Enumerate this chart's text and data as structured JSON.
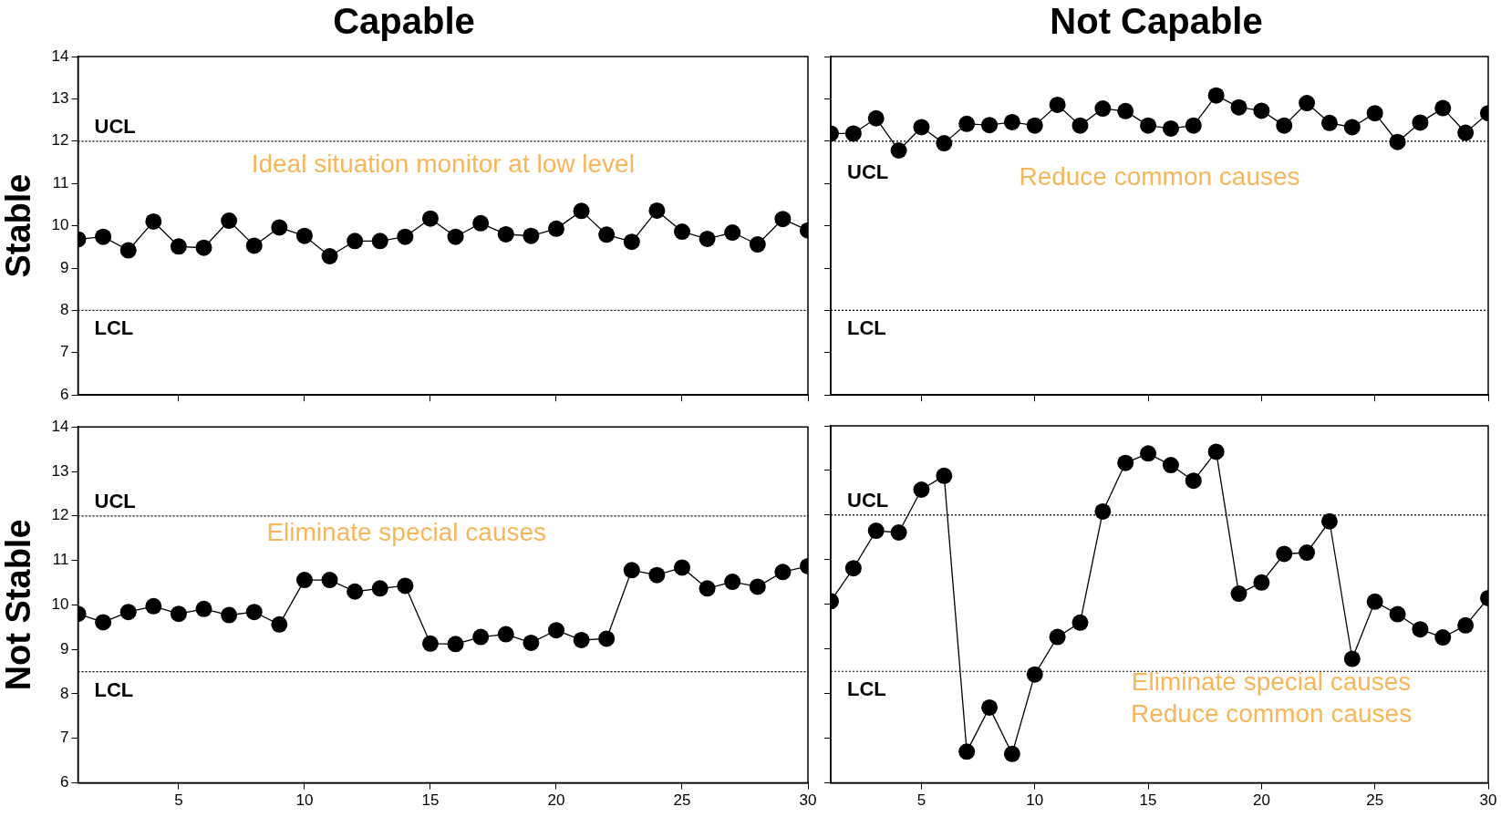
{
  "chart_data": [
    {
      "type": "line",
      "title": "Capable",
      "ylabel": "Stable",
      "x": [
        1,
        2,
        3,
        4,
        5,
        6,
        7,
        8,
        9,
        10,
        11,
        12,
        13,
        14,
        15,
        16,
        17,
        18,
        19,
        20,
        21,
        22,
        23,
        24,
        25,
        26,
        27,
        28,
        29,
        30
      ],
      "series": [
        {
          "color": "#000000",
          "values": [
            9.68,
            9.74,
            9.42,
            10.1,
            9.51,
            9.48,
            10.12,
            9.53,
            9.96,
            9.76,
            9.28,
            9.64,
            9.64,
            9.74,
            10.17,
            9.74,
            10.06,
            9.8,
            9.76,
            9.93,
            10.35,
            9.79,
            9.62,
            10.36,
            9.86,
            9.69,
            9.84,
            9.56,
            10.16,
            9.89
          ]
        }
      ],
      "xlim": [
        1,
        30
      ],
      "xticks": [
        {
          "value": 5,
          "label": null
        },
        {
          "value": 10,
          "label": null
        },
        {
          "value": 15,
          "label": null
        },
        {
          "value": 20,
          "label": null
        },
        {
          "value": 25,
          "label": null
        },
        {
          "value": 30,
          "label": null
        }
      ],
      "ylim": [
        6,
        14
      ],
      "yticks": [
        6,
        7,
        8,
        9,
        10,
        11,
        12,
        13,
        14
      ],
      "tick_labels": "y",
      "marker": "circle",
      "grid": false,
      "legend": false,
      "ref_lines": [
        {
          "axis": "y",
          "value": 12,
          "label": "UCL",
          "color": "#000000",
          "line_style": "dotted"
        },
        {
          "axis": "y",
          "value": 8,
          "label": "LCL",
          "color": "#000000",
          "line_style": "dotted"
        }
      ],
      "annotations": [
        "Ideal situation monitor at low level"
      ]
    },
    {
      "type": "line",
      "title": "Not Capable",
      "x": [
        1,
        2,
        3,
        4,
        5,
        6,
        7,
        8,
        9,
        10,
        11,
        12,
        13,
        14,
        15,
        16,
        17,
        18,
        19,
        20,
        21,
        22,
        23,
        24,
        25,
        26,
        27,
        28,
        29,
        30
      ],
      "series": [
        {
          "color": "#000000",
          "values": [
            12.18,
            12.18,
            12.54,
            11.78,
            12.33,
            11.95,
            12.41,
            12.38,
            12.45,
            12.37,
            12.86,
            12.37,
            12.77,
            12.71,
            12.37,
            12.3,
            12.37,
            13.08,
            12.8,
            12.72,
            12.37,
            12.9,
            12.43,
            12.33,
            12.66,
            11.98,
            12.44,
            12.78,
            12.2,
            12.66
          ]
        }
      ],
      "xlim": [
        1,
        30
      ],
      "xticks": [
        {
          "value": 5,
          "label": null
        },
        {
          "value": 10,
          "label": null
        },
        {
          "value": 15,
          "label": null
        },
        {
          "value": 20,
          "label": null
        },
        {
          "value": 25,
          "label": null
        },
        {
          "value": 30,
          "label": null
        }
      ],
      "ylim": [
        6,
        14
      ],
      "yticks": [
        {
          "value": 6,
          "label": null
        },
        {
          "value": 7,
          "label": null
        },
        {
          "value": 8,
          "label": null
        },
        {
          "value": 9,
          "label": null
        },
        {
          "value": 10,
          "label": null
        },
        {
          "value": 11,
          "label": null
        },
        {
          "value": 12,
          "label": null
        },
        {
          "value": 13,
          "label": null
        },
        {
          "value": 14,
          "label": null
        }
      ],
      "tick_labels": false,
      "marker": "circle",
      "grid": false,
      "legend": false,
      "ref_lines": [
        {
          "axis": "y",
          "value": 12,
          "label": "UCL",
          "color": "#000000",
          "line_style": "dotted"
        },
        {
          "axis": "y",
          "value": 8,
          "label": "LCL",
          "color": "#000000",
          "line_style": "dotted"
        }
      ],
      "annotations": [
        "Reduce common causes"
      ]
    },
    {
      "type": "line",
      "ylabel": "Not Stable",
      "x": [
        1,
        2,
        3,
        4,
        5,
        6,
        7,
        8,
        9,
        10,
        11,
        12,
        13,
        14,
        15,
        16,
        17,
        18,
        19,
        20,
        21,
        22,
        23,
        24,
        25,
        26,
        27,
        28,
        29,
        30
      ],
      "series": [
        {
          "color": "#000000",
          "values": [
            9.8,
            9.61,
            9.84,
            9.97,
            9.8,
            9.91,
            9.77,
            9.84,
            9.56,
            10.56,
            10.56,
            10.3,
            10.37,
            10.43,
            9.13,
            9.12,
            9.28,
            9.34,
            9.15,
            9.43,
            9.21,
            9.24,
            10.78,
            10.67,
            10.84,
            10.37,
            10.52,
            10.41,
            10.74,
            10.87
          ]
        }
      ],
      "xlim": [
        1,
        30
      ],
      "xticks": [
        5,
        10,
        15,
        20,
        25,
        30
      ],
      "ylim": [
        6,
        14
      ],
      "yticks": [
        6,
        7,
        8,
        9,
        10,
        11,
        12,
        13,
        14
      ],
      "marker": "circle",
      "grid": false,
      "legend": false,
      "ref_lines": [
        {
          "axis": "y",
          "value": 12,
          "label": "UCL",
          "color": "#000000",
          "line_style": "dotted"
        },
        {
          "axis": "y",
          "value": 8.5,
          "label": "LCL",
          "color": "#000000",
          "line_style": "dotted"
        }
      ],
      "annotations": [
        "Eliminate special causes"
      ]
    },
    {
      "type": "line",
      "x": [
        1,
        2,
        3,
        4,
        5,
        6,
        7,
        8,
        9,
        10,
        11,
        12,
        13,
        14,
        15,
        16,
        17,
        18,
        19,
        20,
        21,
        22,
        23,
        24,
        25,
        26,
        27,
        28,
        29,
        30
      ],
      "series": [
        {
          "color": "#000000",
          "values": [
            10.07,
            10.81,
            11.65,
            11.61,
            12.57,
            12.88,
            6.7,
            7.69,
            6.65,
            8.43,
            9.27,
            9.59,
            12.08,
            13.17,
            13.38,
            13.12,
            12.77,
            13.42,
            10.24,
            10.49,
            11.13,
            11.16,
            11.86,
            8.78,
            10.06,
            9.78,
            9.44,
            9.26,
            9.53,
            10.14
          ]
        }
      ],
      "xlim": [
        1,
        30
      ],
      "xticks": [
        5,
        10,
        15,
        20,
        25,
        30
      ],
      "ylim": [
        6,
        14
      ],
      "yticks": [
        {
          "value": 6,
          "label": null
        },
        {
          "value": 7,
          "label": null
        },
        {
          "value": 8,
          "label": null
        },
        {
          "value": 9,
          "label": null
        },
        {
          "value": 10,
          "label": null
        },
        {
          "value": 11,
          "label": null
        },
        {
          "value": 12,
          "label": null
        },
        {
          "value": 13,
          "label": null
        },
        {
          "value": 14,
          "label": null
        }
      ],
      "tick_labels": "x",
      "marker": "circle",
      "grid": false,
      "legend": false,
      "ref_lines": [
        {
          "axis": "y",
          "value": 12,
          "label": "UCL",
          "color": "#000000",
          "line_style": "dotted"
        },
        {
          "axis": "y",
          "value": 8.5,
          "label": "LCL",
          "color": "#000000",
          "line_style": "dotted"
        }
      ],
      "annotations": [
        "Eliminate special causes",
        "Reduce common causes"
      ]
    }
  ]
}
